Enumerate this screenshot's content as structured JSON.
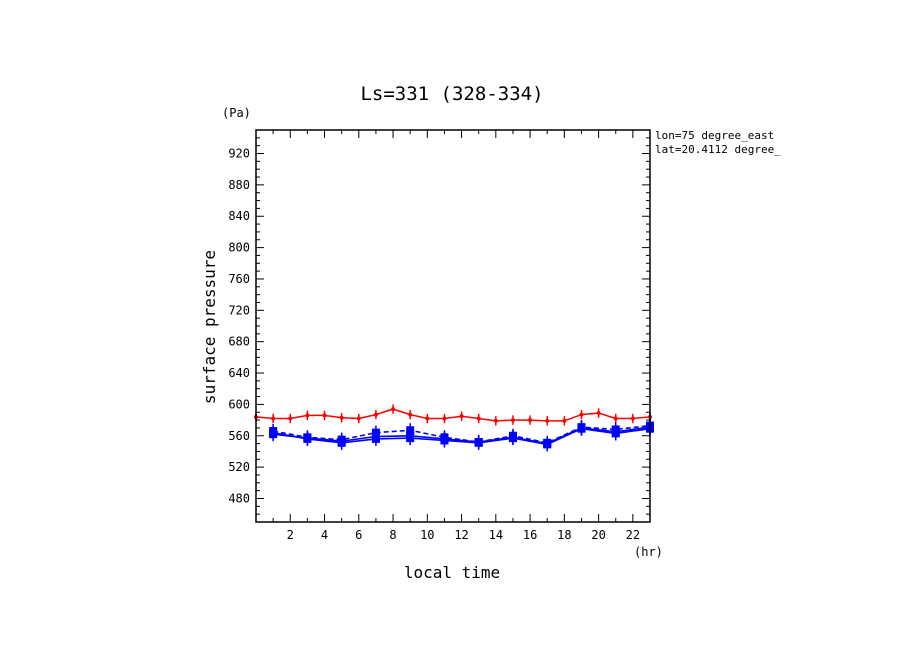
{
  "chart_data": {
    "type": "line",
    "title": "Ls=331 (328-334)",
    "xlabel": "local time",
    "ylabel": "surface pressure",
    "x_unit": "(hr)",
    "y_unit": "(Pa)",
    "annotation": [
      "lon=75 degree_east",
      "lat=20.4112 degree_"
    ],
    "xlim": [
      0,
      23
    ],
    "ylim": [
      450,
      950
    ],
    "x_ticks": [
      2,
      4,
      6,
      8,
      10,
      12,
      14,
      16,
      18,
      20,
      22
    ],
    "y_ticks": [
      480,
      520,
      560,
      600,
      640,
      680,
      720,
      760,
      800,
      840,
      880,
      920
    ],
    "grid": false,
    "series": [
      {
        "color": "#ff0000",
        "style": "solid",
        "marker": "small",
        "errorbar": 6,
        "x": [
          0,
          1,
          2,
          3,
          4,
          5,
          6,
          7,
          8,
          9,
          10,
          11,
          12,
          13,
          14,
          15,
          16,
          17,
          18,
          19,
          20,
          21,
          22,
          23
        ],
        "y": [
          584,
          582,
          582,
          586,
          586,
          583,
          582,
          587,
          594,
          587,
          582,
          582,
          585,
          582,
          579,
          580,
          580,
          579,
          579,
          587,
          589,
          582,
          582,
          584
        ]
      },
      {
        "color": "#0000ff",
        "style": "solid",
        "marker": "large",
        "errorbar": 9,
        "x": [
          1,
          3,
          5,
          7,
          9,
          11,
          13,
          15,
          17,
          19,
          21,
          23
        ],
        "y": [
          564,
          556,
          551,
          556,
          557,
          554,
          551,
          557,
          549,
          569,
          563,
          569
        ]
      },
      {
        "color": "#0000ff",
        "style": "dashed",
        "marker": "large",
        "errorbar": 9,
        "x": [
          1,
          3,
          5,
          7,
          9,
          11,
          13,
          15,
          17,
          19,
          21,
          23
        ],
        "y": [
          566,
          558,
          555,
          564,
          567,
          558,
          552,
          560,
          551,
          571,
          568,
          573
        ]
      },
      {
        "color": "#0000ff",
        "style": "solid",
        "marker": "large",
        "errorbar": 9,
        "x": [
          1,
          3,
          5,
          7,
          9,
          11,
          13,
          15,
          17,
          19,
          21,
          23
        ],
        "y": [
          562,
          557,
          553,
          559,
          560,
          556,
          552,
          558,
          550,
          570,
          565,
          571
        ]
      }
    ]
  }
}
